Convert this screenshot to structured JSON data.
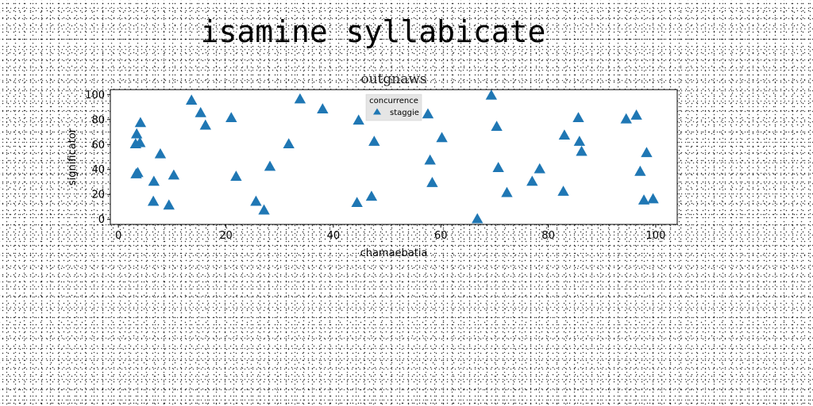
{
  "page": {
    "main_title": "isamine syllabicate"
  },
  "chart_data": {
    "type": "scatter",
    "title": "outgnaws",
    "xlabel": "chamaebatia",
    "ylabel": "significator",
    "xlim": [
      -1.5,
      104
    ],
    "ylim": [
      -4,
      104
    ],
    "x_ticks": [
      0,
      20,
      40,
      60,
      80,
      100
    ],
    "y_ticks": [
      0,
      20,
      40,
      60,
      80,
      100
    ],
    "grid": false,
    "legend": {
      "title": "concurrence",
      "placement": "top-center"
    },
    "marker": "triangle-up",
    "color": "#1f77b4",
    "series": [
      {
        "name": "staggie",
        "x": [
          3.2,
          3.4,
          4.1,
          3.3,
          4.0,
          3.6,
          6.5,
          6.6,
          7.8,
          9.4,
          10.3,
          13.6,
          15.3,
          16.2,
          21.0,
          21.9,
          25.6,
          27.1,
          28.2,
          31.7,
          33.8,
          38.0,
          44.4,
          44.7,
          47.1,
          47.6,
          57.6,
          58.0,
          58.4,
          60.2,
          66.8,
          69.4,
          70.4,
          70.7,
          72.3,
          77.0,
          78.4,
          82.8,
          83.0,
          85.6,
          85.8,
          86.2,
          94.5,
          96.4,
          97.1,
          97.8,
          98.3,
          99.5
        ],
        "y": [
          60,
          68,
          77,
          36,
          61,
          37,
          14,
          30,
          52,
          11,
          35,
          95,
          85,
          75,
          81,
          34,
          14,
          7,
          42,
          60,
          96,
          88,
          13,
          79,
          18,
          62,
          84,
          47,
          29,
          65,
          0,
          99,
          74,
          41,
          21,
          30,
          40,
          22,
          67,
          81,
          62,
          54,
          80,
          83,
          38,
          15,
          53,
          16
        ]
      }
    ]
  }
}
